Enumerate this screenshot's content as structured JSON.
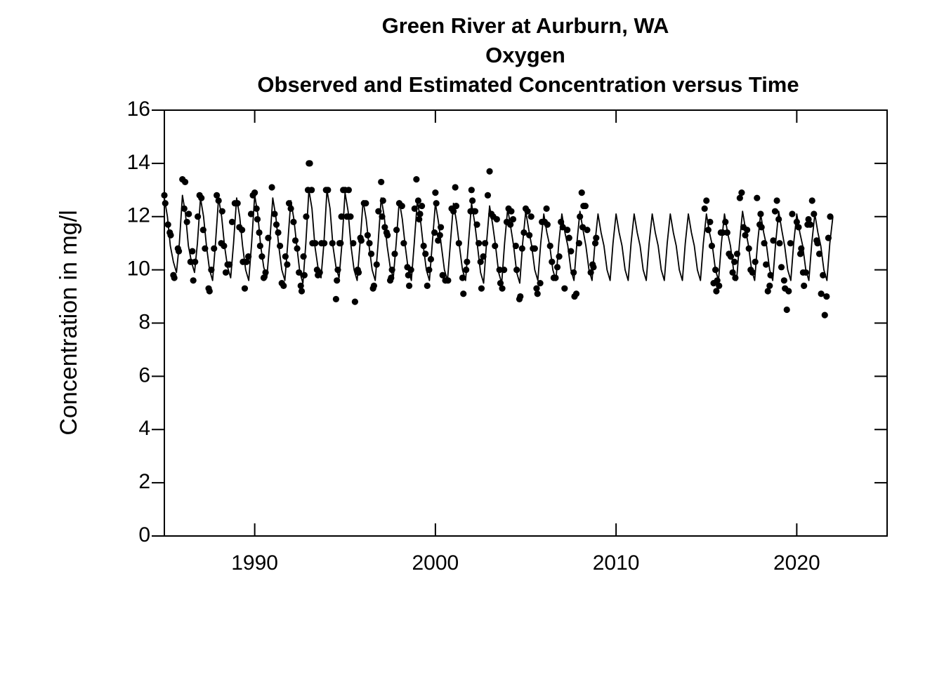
{
  "chart_data": {
    "type": "scatter",
    "title": [
      "Green River at Aurburn, WA",
      "Oxygen",
      "Observed and Estimated Concentration versus Time"
    ],
    "ylabel": "Concentration in mg/l",
    "xlim": [
      1985,
      2025
    ],
    "ylim": [
      0,
      16
    ],
    "xticks": [
      1990,
      2000,
      2010,
      2020
    ],
    "yticks": [
      0,
      2,
      4,
      6,
      8,
      10,
      12,
      14,
      16
    ],
    "series": [
      {
        "type": "scatter",
        "color": "#000000",
        "x": [
          1985.0,
          1985.05,
          1985.2,
          1985.3,
          1985.35,
          1985.5,
          1985.55,
          1985.75,
          1985.8,
          1986.0,
          1986.1,
          1986.15,
          1986.25,
          1986.35,
          1986.45,
          1986.55,
          1986.6,
          1986.7,
          1986.85,
          1986.95,
          1987.05,
          1987.15,
          1987.25,
          1987.45,
          1987.5,
          1987.6,
          1987.75,
          1987.9,
          1988.0,
          1988.15,
          1988.2,
          1988.3,
          1988.4,
          1988.5,
          1988.6,
          1988.75,
          1988.9,
          1989.05,
          1989.15,
          1989.3,
          1989.35,
          1989.45,
          1989.55,
          1989.65,
          1989.8,
          1989.9,
          1990.0,
          1990.1,
          1990.15,
          1990.25,
          1990.3,
          1990.4,
          1990.5,
          1990.6,
          1990.75,
          1990.95,
          1991.1,
          1991.2,
          1991.3,
          1991.4,
          1991.5,
          1991.6,
          1991.7,
          1991.8,
          1991.9,
          1992.0,
          1992.15,
          1992.25,
          1992.35,
          1992.45,
          1992.55,
          1992.6,
          1992.7,
          1992.75,
          1992.85,
          1992.95,
          1993.0,
          1993.05,
          1993.15,
          1993.2,
          1993.35,
          1993.45,
          1993.5,
          1993.6,
          1993.7,
          1993.85,
          1993.95,
          1994.05,
          1994.3,
          1994.5,
          1994.55,
          1994.6,
          1994.7,
          1994.75,
          1994.8,
          1994.9,
          1995.0,
          1995.1,
          1995.2,
          1995.3,
          1995.45,
          1995.55,
          1995.7,
          1995.75,
          1995.85,
          1995.9,
          1996.05,
          1996.15,
          1996.25,
          1996.35,
          1996.45,
          1996.55,
          1996.6,
          1996.75,
          1996.85,
          1997.0,
          1997.05,
          1997.1,
          1997.2,
          1997.3,
          1997.35,
          1997.5,
          1997.55,
          1997.6,
          1997.75,
          1997.85,
          1998.0,
          1998.15,
          1998.25,
          1998.45,
          1998.5,
          1998.55,
          1998.65,
          1998.85,
          1998.95,
          1999.05,
          1999.1,
          1999.15,
          1999.25,
          1999.35,
          1999.45,
          1999.55,
          1999.65,
          1999.75,
          1999.95,
          2000.0,
          2000.05,
          2000.15,
          2000.25,
          2000.3,
          2000.4,
          2000.55,
          2000.7,
          2000.9,
          2001.0,
          2001.1,
          2001.15,
          2001.3,
          2001.5,
          2001.55,
          2001.7,
          2001.75,
          2001.95,
          2002.0,
          2002.05,
          2002.15,
          2002.2,
          2002.3,
          2002.4,
          2002.5,
          2002.55,
          2002.65,
          2002.75,
          2002.9,
          2003.0,
          2003.1,
          2003.2,
          2003.3,
          2003.4,
          2003.55,
          2003.6,
          2003.7,
          2003.8,
          2003.95,
          2004.05,
          2004.15,
          2004.2,
          2004.3,
          2004.45,
          2004.5,
          2004.65,
          2004.7,
          2004.8,
          2004.9,
          2005.0,
          2005.1,
          2005.2,
          2005.3,
          2005.4,
          2005.5,
          2005.6,
          2005.65,
          2005.8,
          2005.9,
          2006.05,
          2006.15,
          2006.2,
          2006.35,
          2006.45,
          2006.55,
          2006.65,
          2006.75,
          2006.85,
          2006.95,
          2007.05,
          2007.15,
          2007.3,
          2007.4,
          2007.5,
          2007.65,
          2007.7,
          2007.8,
          2007.95,
          2008.0,
          2008.1,
          2008.15,
          2008.2,
          2008.3,
          2008.4,
          2008.6,
          2008.7,
          2008.75,
          2008.85,
          2008.9,
          2014.9,
          2015.0,
          2015.1,
          2015.2,
          2015.3,
          2015.4,
          2015.5,
          2015.55,
          2015.6,
          2015.7,
          2015.8,
          2015.9,
          2016.05,
          2016.15,
          2016.25,
          2016.35,
          2016.45,
          2016.55,
          2016.6,
          2016.7,
          2016.85,
          2016.95,
          2017.05,
          2017.15,
          2017.25,
          2017.35,
          2017.45,
          2017.55,
          2017.7,
          2017.8,
          2017.95,
          2018.0,
          2018.05,
          2018.2,
          2018.3,
          2018.4,
          2018.5,
          2018.55,
          2018.7,
          2018.8,
          2018.9,
          2019.0,
          2019.05,
          2019.15,
          2019.3,
          2019.35,
          2019.45,
          2019.55,
          2019.65,
          2019.75,
          2020.0,
          2020.1,
          2020.2,
          2020.25,
          2020.35,
          2020.4,
          2020.5,
          2020.6,
          2020.65,
          2020.75,
          2020.85,
          2020.95,
          2021.1,
          2021.15,
          2021.25,
          2021.35,
          2021.45,
          2021.55,
          2021.65,
          2021.75,
          2021.85
        ],
        "values": [
          12.8,
          12.5,
          11.7,
          11.4,
          11.3,
          9.8,
          9.7,
          10.8,
          10.7,
          13.4,
          12.3,
          13.3,
          11.8,
          12.1,
          10.3,
          10.7,
          9.6,
          10.3,
          12.0,
          12.8,
          12.7,
          11.5,
          10.8,
          9.3,
          9.2,
          10.0,
          10.8,
          12.8,
          12.6,
          11.0,
          12.2,
          10.9,
          9.9,
          10.2,
          10.2,
          11.8,
          12.5,
          12.5,
          11.6,
          11.5,
          10.3,
          9.3,
          10.3,
          10.5,
          12.1,
          12.8,
          12.9,
          12.3,
          11.9,
          11.4,
          10.9,
          10.5,
          9.7,
          9.9,
          11.2,
          13.1,
          12.1,
          11.7,
          11.4,
          10.9,
          9.5,
          9.4,
          10.5,
          10.2,
          12.5,
          12.3,
          11.8,
          11.1,
          10.8,
          9.9,
          9.4,
          9.2,
          10.5,
          9.8,
          12.0,
          13.0,
          14.0,
          14.0,
          13.0,
          11.0,
          11.0,
          10.0,
          9.8,
          9.9,
          11.0,
          11.0,
          13.0,
          13.0,
          11.0,
          8.9,
          9.6,
          10.0,
          11.0,
          11.0,
          12.0,
          13.0,
          13.0,
          12.0,
          13.0,
          12.0,
          11.0,
          8.8,
          10.0,
          9.9,
          11.2,
          11.1,
          12.5,
          12.5,
          11.3,
          11.0,
          10.6,
          9.3,
          9.4,
          10.2,
          12.2,
          13.3,
          12.0,
          12.6,
          11.6,
          11.4,
          11.3,
          9.6,
          9.7,
          10.0,
          10.6,
          11.5,
          12.5,
          12.4,
          11.0,
          10.1,
          9.8,
          9.4,
          10.0,
          12.3,
          13.4,
          12.6,
          11.9,
          12.1,
          12.4,
          10.9,
          10.6,
          9.4,
          10.0,
          10.4,
          11.4,
          12.9,
          12.5,
          11.1,
          11.3,
          11.6,
          9.8,
          9.6,
          9.6,
          12.3,
          12.2,
          13.1,
          12.4,
          11.0,
          9.7,
          9.1,
          10.0,
          10.3,
          12.2,
          13.0,
          12.6,
          12.2,
          12.2,
          11.7,
          11.0,
          10.3,
          9.3,
          10.5,
          11.0,
          12.8,
          13.7,
          12.1,
          12.0,
          10.9,
          11.9,
          10.0,
          9.5,
          9.3,
          10.0,
          11.8,
          12.3,
          11.7,
          12.2,
          11.9,
          10.9,
          10.0,
          8.9,
          9.0,
          10.8,
          11.4,
          12.3,
          12.2,
          11.3,
          12.0,
          10.8,
          10.8,
          9.3,
          9.1,
          9.5,
          11.8,
          11.8,
          12.3,
          11.7,
          10.9,
          10.3,
          9.7,
          9.7,
          10.1,
          10.5,
          11.8,
          11.6,
          9.3,
          11.5,
          11.2,
          10.7,
          9.9,
          9.0,
          9.1,
          11.0,
          12.0,
          12.9,
          11.6,
          12.4,
          12.4,
          11.5,
          9.9,
          10.2,
          10.1,
          11.0,
          11.2,
          12.3,
          12.6,
          11.5,
          11.8,
          10.9,
          9.5,
          10.0,
          9.2,
          9.6,
          9.4,
          11.4,
          11.4,
          11.8,
          11.4,
          10.6,
          10.5,
          9.9,
          10.3,
          9.7,
          10.6,
          12.7,
          12.9,
          11.6,
          11.3,
          11.5,
          10.8,
          10.0,
          9.9,
          10.3,
          12.7,
          11.7,
          12.1,
          11.6,
          11.0,
          10.2,
          9.2,
          9.4,
          9.8,
          11.1,
          12.2,
          12.6,
          11.9,
          11.0,
          10.1,
          9.6,
          9.3,
          8.5,
          9.2,
          11.0,
          12.1,
          11.8,
          11.6,
          10.6,
          10.8,
          9.9,
          9.4,
          9.9,
          11.7,
          11.9,
          11.7,
          12.6,
          12.1,
          11.1,
          11.0,
          10.6,
          9.1,
          9.8,
          8.3,
          9.0,
          11.2,
          12.0
        ]
      },
      {
        "type": "line",
        "color": "#000000",
        "x": [
          1985,
          1985.17,
          1985.33,
          1985.5,
          1985.67,
          1985.83,
          1986,
          1986.17,
          1986.33,
          1986.5,
          1986.67,
          1986.83,
          1987,
          1987.17,
          1987.33,
          1987.5,
          1987.67,
          1987.83,
          1988,
          1988.17,
          1988.33,
          1988.5,
          1988.67,
          1988.83,
          1989,
          1989.17,
          1989.33,
          1989.5,
          1989.67,
          1989.83,
          1990,
          1990.17,
          1990.33,
          1990.5,
          1990.67,
          1990.83,
          1991,
          1991.17,
          1991.33,
          1991.5,
          1991.67,
          1991.83,
          1992,
          1992.17,
          1992.33,
          1992.5,
          1992.67,
          1992.83,
          1993,
          1993.17,
          1993.33,
          1993.5,
          1993.67,
          1993.83,
          1994,
          1994.17,
          1994.33,
          1994.5,
          1994.67,
          1994.83,
          1995,
          1995.17,
          1995.33,
          1995.5,
          1995.67,
          1995.83,
          1996,
          1996.17,
          1996.33,
          1996.5,
          1996.67,
          1996.83,
          1997,
          1997.17,
          1997.33,
          1997.5,
          1997.67,
          1997.83,
          1998,
          1998.17,
          1998.33,
          1998.5,
          1998.67,
          1998.83,
          1999,
          1999.17,
          1999.33,
          1999.5,
          1999.67,
          1999.83,
          2000,
          2000.17,
          2000.33,
          2000.5,
          2000.67,
          2000.83,
          2001,
          2001.17,
          2001.33,
          2001.5,
          2001.67,
          2001.83,
          2002,
          2002.17,
          2002.33,
          2002.5,
          2002.67,
          2002.83,
          2003,
          2003.17,
          2003.33,
          2003.5,
          2003.67,
          2003.83,
          2004,
          2004.17,
          2004.33,
          2004.5,
          2004.67,
          2004.83,
          2005,
          2005.17,
          2005.33,
          2005.5,
          2005.67,
          2005.83,
          2006,
          2006.17,
          2006.33,
          2006.5,
          2006.67,
          2006.83,
          2007,
          2007.17,
          2007.33,
          2007.5,
          2007.67,
          2007.83,
          2008,
          2008.17,
          2008.33,
          2008.5,
          2008.67,
          2008.83,
          2009,
          2009.17,
          2009.33,
          2009.5,
          2009.67,
          2009.83,
          2010,
          2010.17,
          2010.33,
          2010.5,
          2010.67,
          2010.83,
          2011,
          2011.17,
          2011.33,
          2011.5,
          2011.67,
          2011.83,
          2012,
          2012.17,
          2012.33,
          2012.5,
          2012.67,
          2012.83,
          2013,
          2013.17,
          2013.33,
          2013.5,
          2013.67,
          2013.83,
          2014,
          2014.17,
          2014.33,
          2014.5,
          2014.67,
          2014.83,
          2015,
          2015.17,
          2015.33,
          2015.5,
          2015.67,
          2015.83,
          2016,
          2016.17,
          2016.33,
          2016.5,
          2016.67,
          2016.83,
          2017,
          2017.17,
          2017.33,
          2017.5,
          2017.67,
          2017.83,
          2018,
          2018.17,
          2018.33,
          2018.5,
          2018.67,
          2018.83,
          2019,
          2019.17,
          2019.33,
          2019.5,
          2019.67,
          2019.83,
          2020,
          2020.17,
          2020.33,
          2020.5,
          2020.67,
          2020.83,
          2021,
          2021.17,
          2021.33,
          2021.5,
          2021.67,
          2021.83,
          2022
        ],
        "values": [
          12.7,
          12.0,
          10.9,
          10.3,
          9.9,
          11.0,
          12.8,
          12.1,
          10.9,
          10.3,
          9.9,
          11.0,
          12.7,
          12.0,
          10.9,
          10.0,
          9.6,
          11.0,
          12.7,
          12.0,
          10.9,
          10.1,
          9.7,
          11.0,
          12.7,
          12.0,
          10.9,
          10.0,
          9.6,
          11.0,
          12.8,
          12.1,
          10.9,
          10.1,
          9.7,
          11.0,
          12.7,
          12.0,
          10.9,
          10.0,
          9.6,
          11.0,
          12.6,
          11.9,
          10.9,
          9.9,
          9.5,
          11.0,
          13.0,
          12.3,
          10.9,
          10.1,
          9.7,
          11.0,
          13.0,
          12.3,
          10.9,
          10.1,
          9.7,
          11.0,
          12.9,
          12.2,
          10.9,
          10.0,
          9.6,
          11.0,
          12.6,
          11.9,
          10.9,
          10.0,
          9.6,
          11.0,
          12.7,
          12.0,
          10.9,
          10.1,
          9.7,
          11.0,
          12.6,
          11.9,
          10.9,
          10.0,
          9.6,
          11.0,
          12.6,
          11.9,
          10.9,
          10.0,
          9.6,
          11.0,
          12.5,
          11.8,
          10.9,
          10.0,
          9.6,
          11.0,
          12.5,
          11.8,
          10.9,
          10.0,
          9.6,
          11.0,
          12.5,
          11.8,
          10.9,
          9.9,
          9.5,
          11.0,
          12.4,
          11.7,
          10.9,
          9.9,
          9.5,
          11.0,
          12.3,
          11.6,
          10.9,
          9.9,
          9.5,
          11.0,
          12.2,
          11.5,
          10.9,
          10.0,
          9.6,
          11.0,
          12.1,
          11.4,
          10.9,
          10.0,
          9.6,
          11.0,
          12.1,
          11.4,
          10.9,
          10.0,
          9.6,
          11.0,
          12.2,
          11.5,
          10.9,
          10.0,
          9.6,
          11.0,
          12.1,
          11.4,
          10.9,
          10.0,
          9.6,
          11.0,
          12.1,
          11.4,
          10.9,
          10.0,
          9.6,
          11.0,
          12.1,
          11.4,
          10.9,
          10.0,
          9.6,
          11.0,
          12.1,
          11.4,
          10.9,
          10.0,
          9.6,
          11.0,
          12.1,
          11.4,
          10.9,
          10.0,
          9.6,
          11.0,
          12.1,
          11.4,
          10.9,
          10.0,
          9.6,
          11.0,
          12.1,
          11.4,
          10.9,
          10.0,
          9.6,
          11.0,
          12.1,
          11.4,
          10.9,
          10.0,
          9.6,
          11.0,
          12.2,
          11.5,
          10.9,
          10.0,
          9.6,
          11.0,
          12.1,
          11.4,
          10.9,
          10.0,
          9.6,
          11.0,
          12.2,
          11.5,
          10.9,
          10.0,
          9.6,
          11.0,
          12.1,
          11.4,
          10.9,
          10.0,
          9.6,
          11.0,
          12.1,
          11.4,
          10.9,
          10.0,
          9.6,
          11.0,
          12.0
        ]
      }
    ]
  }
}
